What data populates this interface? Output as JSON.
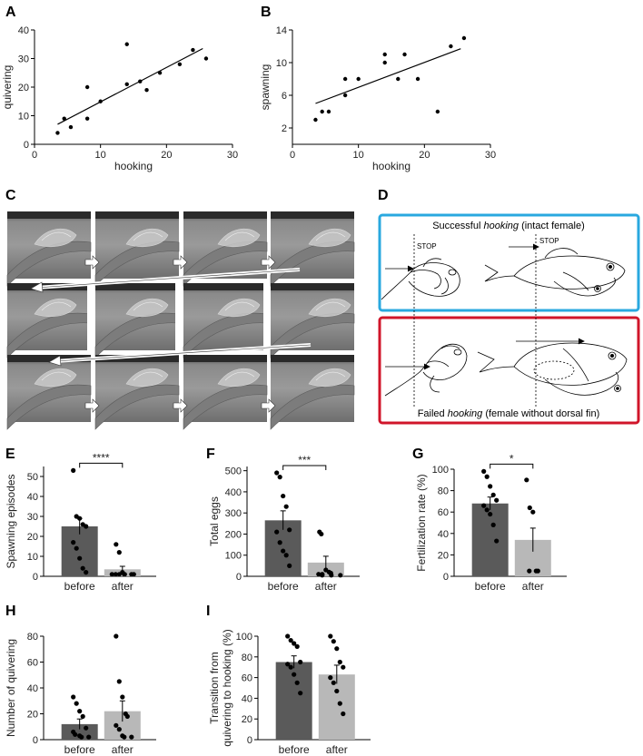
{
  "panels": {
    "A": "A",
    "B": "B",
    "C": "C",
    "D": "D",
    "E": "E",
    "F": "F",
    "G": "G",
    "H": "H",
    "I": "I"
  },
  "panel_d": {
    "top_title_a": "Successful ",
    "top_title_em": "hooking",
    "top_title_b": " (intact female)",
    "bottom_title_a": "Failed ",
    "bottom_title_em": "hooking",
    "bottom_title_b": " (female without dorsal fin)",
    "stop_label": "STOP",
    "top_color": "#29a8df",
    "bottom_color": "#d0152a"
  },
  "colors": {
    "dark_bar": "#5a5a5a",
    "light_bar": "#b8b8b8"
  },
  "chart_data": [
    {
      "id": "A",
      "type": "scatter",
      "xlabel": "hooking",
      "ylabel": "quivering",
      "xlim": [
        0,
        30
      ],
      "ylim": [
        0,
        40
      ],
      "xticks": [
        0,
        10,
        20,
        30
      ],
      "yticks": [
        0,
        10,
        20,
        30,
        40
      ],
      "points": [
        [
          3.5,
          4
        ],
        [
          4.5,
          9
        ],
        [
          5.5,
          6
        ],
        [
          8,
          9
        ],
        [
          8,
          20
        ],
        [
          10,
          15
        ],
        [
          14,
          35
        ],
        [
          14,
          21
        ],
        [
          16,
          22
        ],
        [
          17,
          19
        ],
        [
          19,
          25
        ],
        [
          22,
          28
        ],
        [
          24,
          33
        ],
        [
          26,
          30
        ]
      ],
      "fit": [
        [
          3.5,
          7
        ],
        [
          25.5,
          33.5
        ]
      ]
    },
    {
      "id": "B",
      "type": "scatter",
      "xlabel": "hooking",
      "ylabel": "spawning",
      "xlim": [
        0,
        30
      ],
      "ylim": [
        0,
        14
      ],
      "xticks": [
        0,
        10,
        20,
        30
      ],
      "yticks": [
        2,
        6,
        10,
        14
      ],
      "points": [
        [
          3.5,
          3
        ],
        [
          4.5,
          4
        ],
        [
          5.5,
          4
        ],
        [
          8,
          6
        ],
        [
          8,
          8
        ],
        [
          10,
          8
        ],
        [
          14,
          10
        ],
        [
          14,
          11
        ],
        [
          16,
          8
        ],
        [
          17,
          11
        ],
        [
          19,
          8
        ],
        [
          22,
          4
        ],
        [
          24,
          12
        ],
        [
          26,
          13
        ]
      ],
      "fit": [
        [
          3.5,
          5
        ],
        [
          25.5,
          11.7
        ]
      ]
    },
    {
      "id": "E",
      "type": "bar",
      "categories": [
        "before",
        "after"
      ],
      "ylabel": "Spawning episodes",
      "ylim": [
        0,
        55
      ],
      "yticks": [
        0,
        10,
        20,
        30,
        40,
        50
      ],
      "values": [
        25,
        3.5
      ],
      "errors": [
        4,
        1.5
      ],
      "significance": "****",
      "points": [
        [
          53,
          30,
          29,
          26,
          25,
          17,
          14,
          9,
          4,
          2
        ],
        [
          16,
          12,
          2,
          1,
          1,
          1,
          1,
          1,
          1,
          1
        ]
      ]
    },
    {
      "id": "F",
      "type": "bar",
      "categories": [
        "before",
        "after"
      ],
      "ylabel": "Total eggs",
      "ylim": [
        0,
        520
      ],
      "yticks": [
        0,
        100,
        200,
        300,
        400,
        500
      ],
      "values": [
        265,
        65
      ],
      "errors": [
        45,
        30
      ],
      "significance": "***",
      "points": [
        [
          490,
          470,
          380,
          330,
          220,
          210,
          160,
          120,
          100,
          50
        ],
        [
          210,
          200,
          30,
          20,
          15,
          10,
          10,
          5,
          5,
          5
        ]
      ]
    },
    {
      "id": "G",
      "type": "bar",
      "categories": [
        "before",
        "after"
      ],
      "ylabel": "Fertilization rate (%)",
      "ylim": [
        0,
        100
      ],
      "yticks": [
        0,
        20,
        40,
        60,
        80,
        100
      ],
      "values": [
        68,
        34
      ],
      "errors": [
        6,
        11
      ],
      "significance": "*",
      "points": [
        [
          98,
          93,
          84,
          76,
          71,
          66,
          62,
          58,
          48,
          33
        ],
        [
          90,
          64,
          60,
          5,
          5,
          5
        ]
      ]
    },
    {
      "id": "H",
      "type": "bar",
      "categories": [
        "before",
        "after"
      ],
      "ylabel": "Number of quivering",
      "ylim": [
        0,
        80
      ],
      "yticks": [
        0,
        20,
        40,
        60,
        80
      ],
      "values": [
        12,
        22
      ],
      "errors": [
        4,
        8
      ],
      "significance": "",
      "points": [
        [
          33,
          28,
          22,
          18,
          9,
          6,
          4,
          3,
          2,
          2
        ],
        [
          80,
          45,
          33,
          20,
          18,
          11,
          8,
          3,
          2,
          2
        ]
      ]
    },
    {
      "id": "I",
      "type": "bar",
      "categories": [
        "before",
        "after"
      ],
      "ylabel": "Transition from quivering to hooking (%)",
      "ylabel_lines": [
        "Transition from",
        "quivering to hooking (%)"
      ],
      "ylim": [
        0,
        100
      ],
      "yticks": [
        0,
        20,
        40,
        60,
        80,
        100
      ],
      "values": [
        75,
        63
      ],
      "errors": [
        6,
        9
      ],
      "significance": "",
      "points": [
        [
          100,
          96,
          93,
          90,
          75,
          73,
          70,
          63,
          55,
          45
        ],
        [
          100,
          95,
          88,
          75,
          70,
          60,
          55,
          47,
          35,
          25
        ]
      ]
    }
  ]
}
